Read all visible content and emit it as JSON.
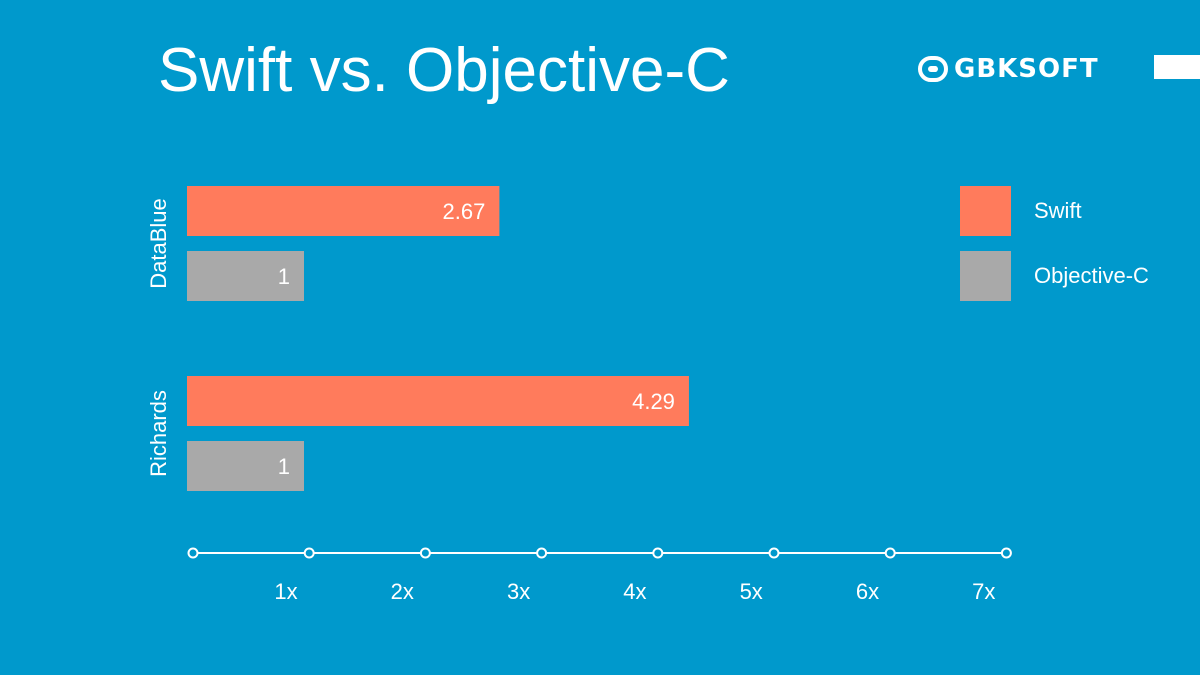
{
  "title": "Swift vs. Objective-C",
  "logo": {
    "text": "GBKSOFT"
  },
  "chart_data": {
    "type": "bar",
    "orientation": "horizontal",
    "categories": [
      "DataBlue",
      "Richards"
    ],
    "series": [
      {
        "name": "Swift",
        "values": [
          2.67,
          4.29
        ],
        "color": "#FF7B5C"
      },
      {
        "name": "Objective-C",
        "values": [
          1,
          1
        ],
        "color": "#A9A9A9"
      }
    ],
    "xticks": [
      "1x",
      "2x",
      "3x",
      "4x",
      "5x",
      "6x",
      "7x"
    ],
    "xlim": [
      0,
      7
    ],
    "legend_position": "right",
    "grid": false
  }
}
